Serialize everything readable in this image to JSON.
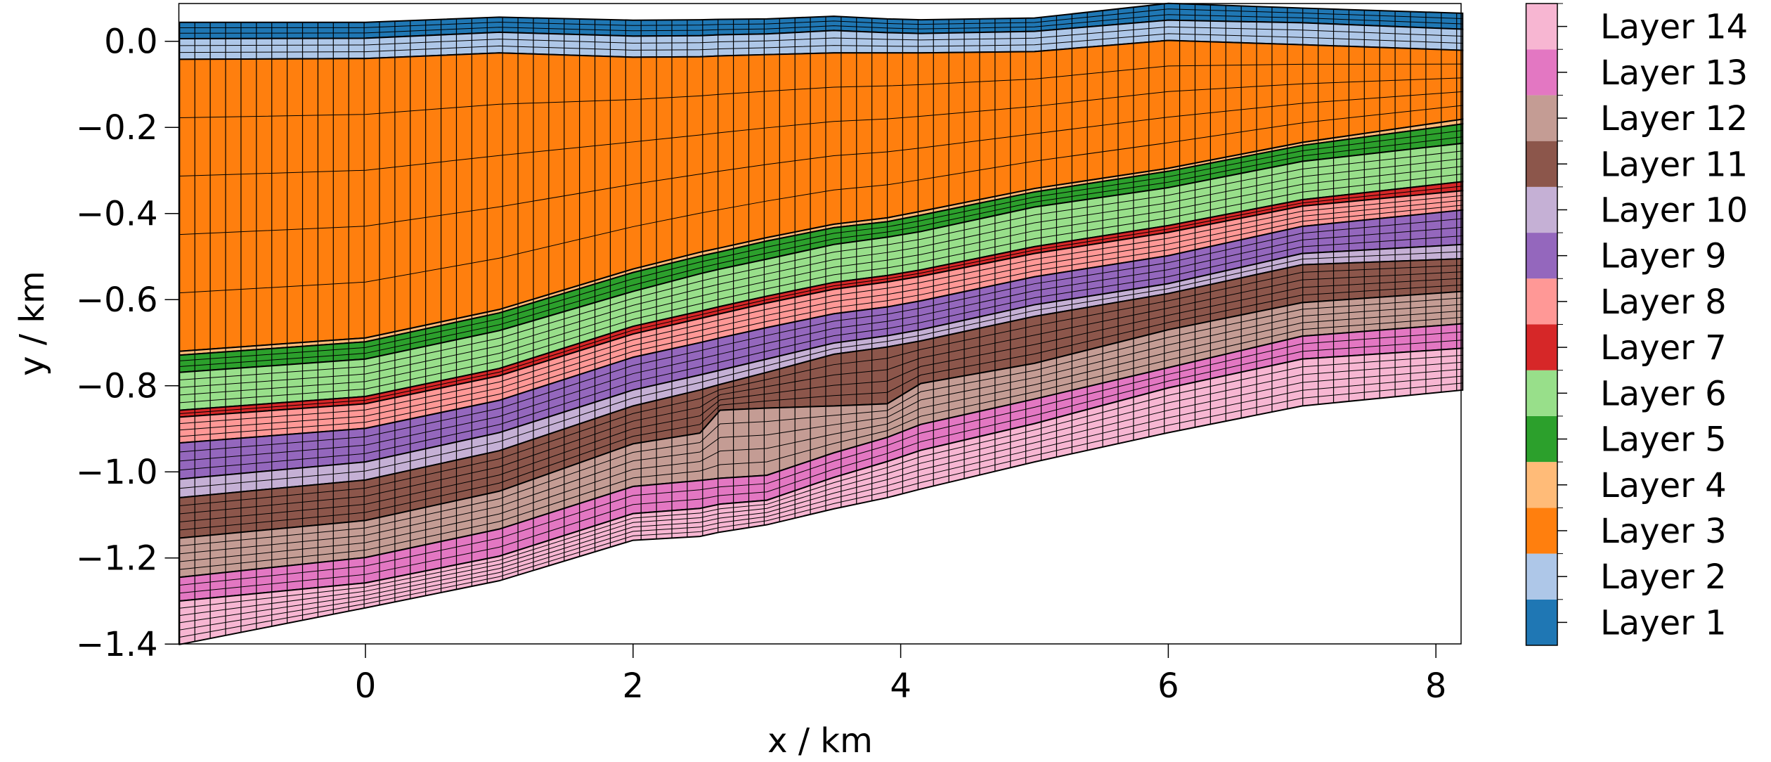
{
  "chart_data": {
    "type": "area",
    "xlabel": "x / km",
    "ylabel": "y / km",
    "xlim": [
      -1.39,
      8.2
    ],
    "ylim": [
      -1.4,
      0.088
    ],
    "xticks": [
      0,
      2,
      4,
      6,
      8
    ],
    "xtick_labels": [
      "0",
      "2",
      "4",
      "6",
      "8"
    ],
    "yticks": [
      0.0,
      -0.2,
      -0.4,
      -0.6,
      -0.8,
      -1.0,
      -1.2,
      -1.4
    ],
    "ytick_labels": [
      "0.0",
      "−0.2",
      "−0.4",
      "−0.6",
      "−0.8",
      "−1.0",
      "−1.2",
      "−1.4"
    ],
    "grid": false,
    "legend_placement": "right colorbar",
    "x_nodes": [
      -1.39,
      0,
      1,
      2,
      2.5,
      2.65,
      3,
      3.5,
      3.9,
      4.15,
      5,
      6,
      7,
      8.2
    ],
    "boundaries": [
      [
        0.044,
        0.044,
        0.056,
        0.049,
        0.05,
        0.051,
        0.052,
        0.058,
        0.052,
        0.05,
        0.054,
        0.088,
        0.077,
        0.065
      ],
      [
        0.006,
        0.007,
        0.021,
        0.012,
        0.013,
        0.015,
        0.017,
        0.025,
        0.02,
        0.018,
        0.023,
        0.049,
        0.043,
        0.028
      ],
      [
        -0.042,
        -0.04,
        -0.027,
        -0.037,
        -0.036,
        -0.034,
        -0.031,
        -0.027,
        -0.027,
        -0.027,
        -0.024,
        0.002,
        -0.008,
        -0.021
      ],
      [
        -0.72,
        -0.689,
        -0.623,
        -0.529,
        -0.49,
        -0.48,
        -0.456,
        -0.425,
        -0.41,
        -0.395,
        -0.342,
        -0.295,
        -0.235,
        -0.181
      ],
      [
        -0.729,
        -0.698,
        -0.631,
        -0.537,
        -0.499,
        -0.489,
        -0.464,
        -0.433,
        -0.419,
        -0.404,
        -0.35,
        -0.302,
        -0.242,
        -0.192
      ],
      [
        -0.769,
        -0.738,
        -0.672,
        -0.581,
        -0.54,
        -0.529,
        -0.506,
        -0.472,
        -0.455,
        -0.442,
        -0.385,
        -0.34,
        -0.279,
        -0.237
      ],
      [
        -0.857,
        -0.825,
        -0.76,
        -0.662,
        -0.627,
        -0.616,
        -0.592,
        -0.56,
        -0.544,
        -0.531,
        -0.477,
        -0.428,
        -0.368,
        -0.326
      ],
      [
        -0.873,
        -0.842,
        -0.777,
        -0.68,
        -0.644,
        -0.633,
        -0.608,
        -0.576,
        -0.559,
        -0.546,
        -0.493,
        -0.444,
        -0.383,
        -0.347
      ],
      [
        -0.933,
        -0.899,
        -0.834,
        -0.734,
        -0.7,
        -0.689,
        -0.665,
        -0.633,
        -0.617,
        -0.603,
        -0.547,
        -0.498,
        -0.43,
        -0.392
      ],
      [
        -1.017,
        -0.977,
        -0.909,
        -0.81,
        -0.775,
        -0.764,
        -0.738,
        -0.701,
        -0.684,
        -0.67,
        -0.612,
        -0.563,
        -0.493,
        -0.472
      ],
      [
        -1.06,
        -1.019,
        -0.951,
        -0.847,
        -0.81,
        -0.797,
        -0.769,
        -0.727,
        -0.71,
        -0.696,
        -0.639,
        -0.586,
        -0.519,
        -0.505
      ],
      [
        -1.154,
        -1.113,
        -1.045,
        -0.935,
        -0.91,
        -0.857,
        -0.852,
        -0.847,
        -0.842,
        -0.795,
        -0.748,
        -0.67,
        -0.607,
        -0.581
      ],
      [
        -1.245,
        -1.199,
        -1.133,
        -1.034,
        -1.02,
        -1.015,
        -1.008,
        -0.956,
        -0.92,
        -0.89,
        -0.831,
        -0.758,
        -0.685,
        -0.656
      ],
      [
        -1.3,
        -1.258,
        -1.196,
        -1.097,
        -1.085,
        -1.075,
        -1.066,
        -1.013,
        -0.976,
        -0.95,
        -0.888,
        -0.805,
        -0.738,
        -0.713
      ],
      [
        -1.401,
        -1.316,
        -1.253,
        -1.159,
        -1.15,
        -1.14,
        -1.123,
        -1.086,
        -1.06,
        -1.04,
        -0.977,
        -0.909,
        -0.847,
        -0.81
      ]
    ],
    "mesh_rows": [
      3,
      3,
      5,
      1,
      3,
      5,
      2,
      4,
      4,
      2,
      5,
      5,
      3,
      6
    ],
    "mesh_column_spacing_km": 0.115,
    "layers": [
      {
        "name": "Layer 1",
        "color": "#1f77b4"
      },
      {
        "name": "Layer 2",
        "color": "#aec7e8"
      },
      {
        "name": "Layer 3",
        "color": "#ff7f0e"
      },
      {
        "name": "Layer 4",
        "color": "#ffbb78"
      },
      {
        "name": "Layer 5",
        "color": "#2ca02c"
      },
      {
        "name": "Layer 6",
        "color": "#98df8a"
      },
      {
        "name": "Layer 7",
        "color": "#d62728"
      },
      {
        "name": "Layer 8",
        "color": "#ff9896"
      },
      {
        "name": "Layer 9",
        "color": "#9467bd"
      },
      {
        "name": "Layer 10",
        "color": "#c5b0d5"
      },
      {
        "name": "Layer 11",
        "color": "#8c564b"
      },
      {
        "name": "Layer 12",
        "color": "#c49c94"
      },
      {
        "name": "Layer 13",
        "color": "#e377c2"
      },
      {
        "name": "Layer 14",
        "color": "#f7b6d2"
      }
    ]
  }
}
